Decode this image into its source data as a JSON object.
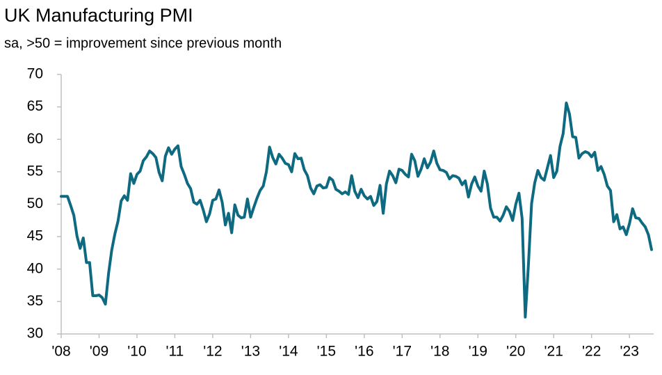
{
  "chart_data": {
    "type": "line",
    "title": "UK Manufacturing PMI",
    "subtitle": "sa, >50 = improvement since previous month",
    "categories": [
      "'08",
      null,
      null,
      null,
      null,
      null,
      null,
      null,
      null,
      null,
      null,
      null,
      "'09",
      null,
      null,
      null,
      null,
      null,
      null,
      null,
      null,
      null,
      null,
      null,
      "'10",
      null,
      null,
      null,
      null,
      null,
      null,
      null,
      null,
      null,
      null,
      null,
      "'11",
      null,
      null,
      null,
      null,
      null,
      null,
      null,
      null,
      null,
      null,
      null,
      "'12",
      null,
      null,
      null,
      null,
      null,
      null,
      null,
      null,
      null,
      null,
      null,
      "'13",
      null,
      null,
      null,
      null,
      null,
      null,
      null,
      null,
      null,
      null,
      null,
      "'14",
      null,
      null,
      null,
      null,
      null,
      null,
      null,
      null,
      null,
      null,
      null,
      "'15",
      null,
      null,
      null,
      null,
      null,
      null,
      null,
      null,
      null,
      null,
      null,
      "'16",
      null,
      null,
      null,
      null,
      null,
      null,
      null,
      null,
      null,
      null,
      null,
      "'17",
      null,
      null,
      null,
      null,
      null,
      null,
      null,
      null,
      null,
      null,
      null,
      "'18",
      null,
      null,
      null,
      null,
      null,
      null,
      null,
      null,
      null,
      null,
      null,
      "'19",
      null,
      null,
      null,
      null,
      null,
      null,
      null,
      null,
      null,
      null,
      null,
      "'20",
      null,
      null,
      null,
      null,
      null,
      null,
      null,
      null,
      null,
      null,
      null,
      "'21",
      null,
      null,
      null,
      null,
      null,
      null,
      null,
      null,
      null,
      null,
      null,
      "'22",
      null,
      null,
      null,
      null,
      null,
      null,
      null,
      null,
      null,
      null,
      null,
      "'23",
      null,
      null,
      null,
      null,
      null,
      null,
      null
    ],
    "values": [
      51.2,
      51.2,
      51.2,
      49.8,
      48.3,
      45.1,
      43.2,
      44.8,
      41.0,
      41.0,
      35.9,
      35.9,
      36.0,
      35.6,
      34.6,
      39.3,
      42.9,
      45.4,
      47.4,
      50.5,
      51.3,
      50.6,
      54.7,
      53.2,
      54.6,
      55.1,
      56.7,
      57.3,
      58.2,
      57.8,
      57.2,
      54.9,
      53.6,
      57.4,
      58.7,
      57.7,
      58.5,
      59.0,
      55.8,
      54.6,
      53.2,
      52.4,
      50.3,
      50.0,
      50.6,
      49.1,
      47.3,
      48.5,
      50.6,
      50.8,
      52.2,
      50.3,
      46.8,
      48.6,
      45.6,
      49.9,
      48.3,
      47.9,
      48.0,
      50.8,
      48.0,
      49.5,
      50.9,
      52.1,
      52.8,
      55.0,
      58.8,
      57.2,
      56.2,
      57.7,
      57.1,
      56.3,
      56.1,
      55.0,
      57.8,
      57.0,
      57.1,
      55.3,
      54.4,
      52.5,
      51.6,
      52.8,
      53.0,
      52.5,
      52.6,
      54.1,
      53.7,
      52.3,
      52.0,
      51.6,
      51.9,
      51.5,
      54.4,
      52.0,
      51.0,
      52.3,
      51.3,
      50.8,
      51.2,
      49.8,
      50.4,
      52.9,
      48.6,
      53.1,
      55.1,
      54.4,
      53.3,
      55.4,
      55.2,
      54.6,
      54.2,
      57.7,
      56.7,
      54.3,
      55.4,
      57.0,
      55.6,
      56.5,
      58.2,
      56.3,
      55.3,
      55.2,
      54.9,
      53.9,
      54.4,
      54.3,
      54.0,
      53.0,
      53.6,
      51.1,
      53.1,
      54.2,
      52.8,
      52.0,
      55.1,
      53.1,
      49.4,
      48.0,
      48.0,
      47.4,
      48.3,
      49.6,
      48.9,
      47.5,
      50.0,
      51.7,
      47.8,
      32.6,
      40.7,
      50.1,
      53.3,
      55.2,
      54.1,
      53.7,
      55.6,
      57.5,
      54.1,
      55.1,
      58.9,
      60.9,
      65.6,
      63.9,
      60.4,
      60.3,
      57.1,
      57.8,
      58.1,
      57.9,
      57.3,
      58.0,
      55.2,
      55.8,
      54.6,
      52.8,
      52.1,
      47.3,
      48.4,
      46.2,
      46.5,
      45.3,
      47.0,
      49.3,
      47.9,
      47.8,
      47.1,
      46.5,
      45.3,
      43.0
    ],
    "color": "#0e6a80",
    "ylim": [
      30,
      70
    ],
    "yticks": [
      30,
      35,
      40,
      45,
      50,
      55,
      60,
      65,
      70
    ],
    "grid": false
  }
}
